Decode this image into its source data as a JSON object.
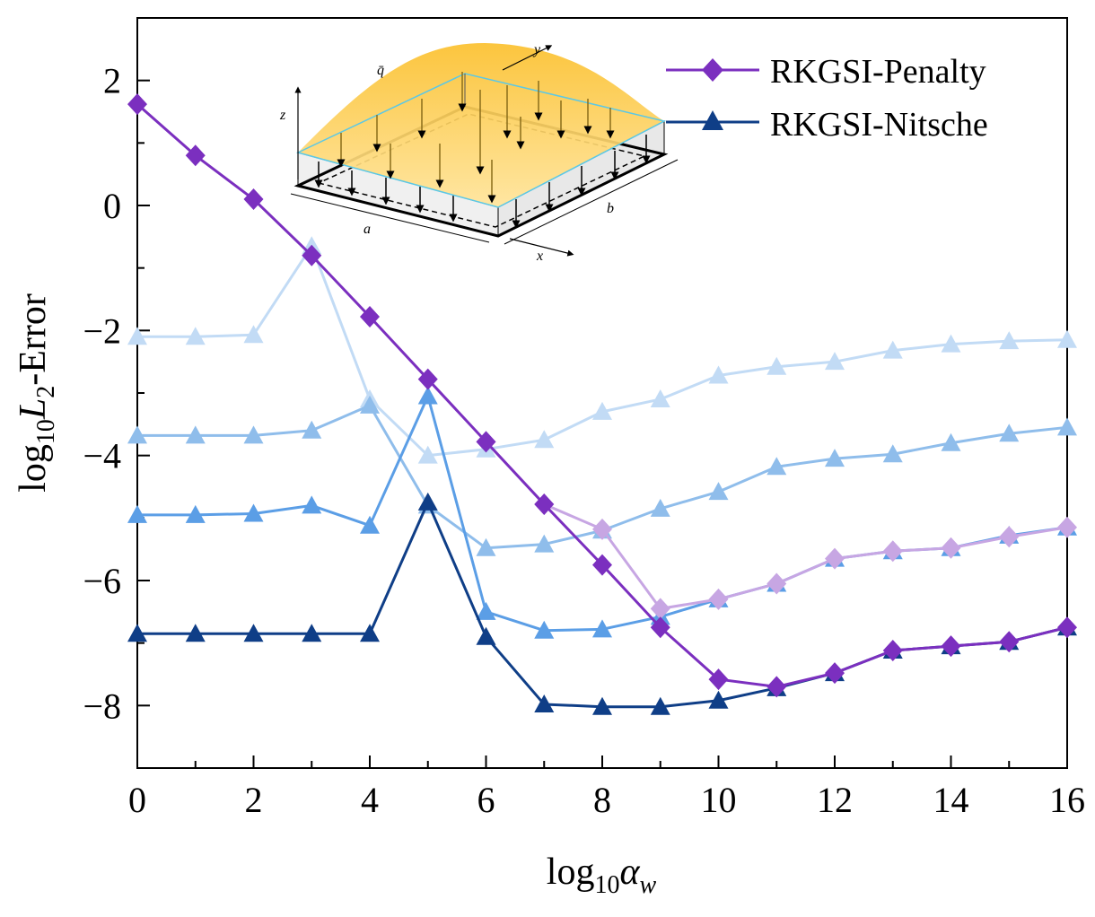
{
  "chart_data": {
    "type": "line",
    "title": "",
    "xlabel": {
      "base": "log",
      "sub": "10",
      "sym": "α",
      "symsub": "w"
    },
    "ylabel": {
      "base": "log",
      "sub": "10",
      "sym": "L",
      "symsub": "2",
      "tail": "-Error"
    },
    "xlim": [
      0,
      16
    ],
    "ylim": [
      -9,
      3
    ],
    "xticks": [
      0,
      2,
      4,
      6,
      8,
      10,
      12,
      14,
      16
    ],
    "yticks": [
      -8,
      -6,
      -4,
      -2,
      0,
      2
    ],
    "xtick_labels": [
      "0",
      "2",
      "4",
      "6",
      "8",
      "10",
      "12",
      "14",
      "16"
    ],
    "ytick_labels": [
      "−8",
      "−6",
      "−4",
      "−2",
      "0",
      "2"
    ],
    "legend_position": "top-right",
    "legend": [
      {
        "name": "RKGSI-Penalty",
        "color": "#7b2fbf",
        "marker": "diamond"
      },
      {
        "name": "RKGSI-Nitsche",
        "color": "#0f3e87",
        "marker": "triangle"
      }
    ],
    "x": [
      0,
      1,
      2,
      3,
      4,
      5,
      6,
      7,
      8,
      9,
      10,
      11,
      12,
      13,
      14,
      15,
      16
    ],
    "series": [
      {
        "name": "",
        "group": "penalty-faded",
        "color": "#e6d4f2",
        "marker": "diamond",
        "values": [
          null,
          null,
          null,
          null,
          null,
          null,
          null,
          null,
          null,
          null,
          null,
          null,
          null,
          null,
          null,
          null,
          null
        ]
      },
      {
        "name": "",
        "group": "nitsche",
        "color": "#c2dbf5",
        "marker": "triangle",
        "values": [
          -2.1,
          -2.1,
          -2.07,
          -0.65,
          -3.1,
          -4.0,
          -3.9,
          -3.75,
          -3.3,
          -3.1,
          -2.72,
          -2.58,
          -2.5,
          -2.32,
          -2.22,
          -2.17,
          -2.15
        ]
      },
      {
        "name": "",
        "group": "nitsche",
        "color": "#8fbdeb",
        "marker": "triangle",
        "values": [
          -3.68,
          -3.68,
          -3.68,
          -3.6,
          -3.2,
          -4.8,
          -5.48,
          -5.42,
          -5.2,
          -4.85,
          -4.58,
          -4.18,
          -4.05,
          -3.98,
          -3.8,
          -3.65,
          -3.55
        ]
      },
      {
        "name": "",
        "group": "nitsche",
        "color": "#5b9ee6",
        "marker": "triangle",
        "values": [
          -4.95,
          -4.95,
          -4.93,
          -4.8,
          -5.12,
          -3.05,
          -6.5,
          -6.8,
          -6.78,
          -6.58,
          -6.3,
          -6.05,
          -5.65,
          -5.53,
          -5.48,
          -5.28,
          -5.15
        ]
      },
      {
        "name": "RKGSI-Nitsche",
        "group": "nitsche",
        "color": "#0f3e87",
        "marker": "triangle",
        "values": [
          -6.85,
          -6.85,
          -6.85,
          -6.85,
          -6.85,
          -4.75,
          -6.9,
          -7.98,
          -8.02,
          -8.02,
          -7.92,
          -7.72,
          -7.48,
          -7.12,
          -7.05,
          -6.98,
          -6.75
        ]
      },
      {
        "name": "",
        "group": "penalty-faded",
        "color": "#c7a6e3",
        "marker": "diamond",
        "values": [
          null,
          null,
          null,
          null,
          null,
          null,
          -3.78,
          -4.78,
          -5.18,
          -6.45,
          -6.3,
          -6.05,
          -5.65,
          -5.53,
          -5.48,
          -5.3,
          -5.15
        ]
      },
      {
        "name": "RKGSI-Penalty",
        "group": "penalty",
        "color": "#7b2fbf",
        "marker": "diamond",
        "values": [
          1.62,
          0.8,
          0.1,
          -0.8,
          -1.78,
          -2.78,
          -3.78,
          -4.78,
          -5.75,
          -6.75,
          -7.58,
          -7.7,
          -7.48,
          -7.12,
          -7.05,
          -6.98,
          -6.75
        ]
      }
    ],
    "inset": {
      "labels": {
        "load": "q̄",
        "x": "x",
        "y": "y",
        "z": "z",
        "a": "a",
        "b": "b"
      },
      "colors": {
        "load": "#f8b51d",
        "plate_edge": "#5bc8e6",
        "arrows": "#8a6d1a"
      }
    }
  }
}
